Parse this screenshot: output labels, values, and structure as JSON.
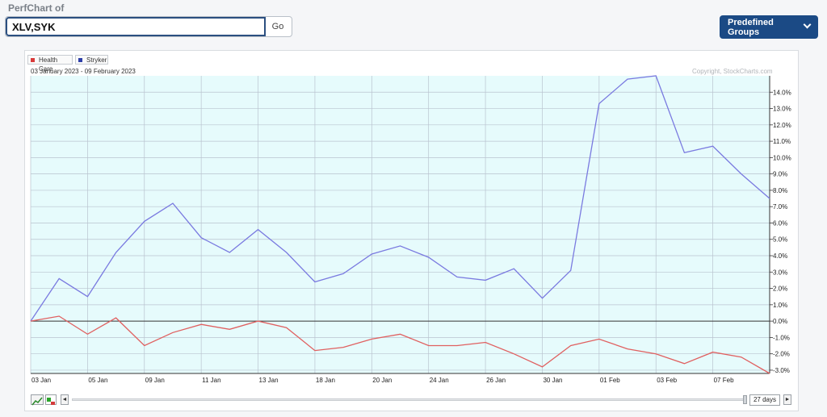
{
  "header": {
    "title": "PerfChart of"
  },
  "symbols": {
    "value": "XLV,SYK",
    "go_label": "Go"
  },
  "groups": {
    "label": "Predefined Groups"
  },
  "chart_info": {
    "date_range": "03 January 2023 - 09 February 2023",
    "copyright": "Copyright, StockCharts.com"
  },
  "controls": {
    "days_label": "27 days",
    "prev_arrow": "◄",
    "next_arrow": "►"
  },
  "colors": {
    "health_care": "#e06060",
    "stryker": "#7a7ae0",
    "health_care_swatch": "#d93a3a",
    "stryker_swatch": "#2e3fa8",
    "plot_bg": "#e6fbfc",
    "grid": "#b9c3cf",
    "zero_line": "#333333"
  },
  "chart_data": {
    "type": "line",
    "title": "",
    "xlabel": "",
    "ylabel": "",
    "ylim": [
      -3.2,
      15.0
    ],
    "yticks": [
      14,
      13,
      12,
      11,
      10,
      9,
      8,
      7,
      6,
      5,
      4,
      3,
      2,
      1,
      0,
      -1,
      -2,
      -3
    ],
    "ytick_labels": [
      "14.0%",
      "13.0%",
      "12.0%",
      "11.0%",
      "10.0%",
      "9.0%",
      "8.0%",
      "7.0%",
      "6.0%",
      "5.0%",
      "4.0%",
      "3.0%",
      "2.0%",
      "1.0%",
      "0.0%",
      "-1.0%",
      "-2.0%",
      "-3.0%"
    ],
    "x": [
      "03 Jan",
      "04 Jan",
      "05 Jan",
      "06 Jan",
      "09 Jan",
      "10 Jan",
      "11 Jan",
      "12 Jan",
      "13 Jan",
      "17 Jan",
      "18 Jan",
      "19 Jan",
      "20 Jan",
      "23 Jan",
      "24 Jan",
      "25 Jan",
      "26 Jan",
      "27 Jan",
      "30 Jan",
      "31 Jan",
      "01 Feb",
      "02 Feb",
      "03 Feb",
      "06 Feb",
      "07 Feb",
      "08 Feb",
      "09 Feb"
    ],
    "xtick_labels": [
      "03  Jan",
      "05  Jan",
      "09  Jan",
      "11  Jan",
      "13  Jan",
      "18  Jan",
      "20  Jan",
      "24  Jan",
      "26  Jan",
      "30  Jan",
      "01  Feb",
      "03  Feb",
      "07  Feb"
    ],
    "xtick_index": [
      0,
      2,
      4,
      6,
      8,
      10,
      12,
      14,
      16,
      18,
      20,
      22,
      24
    ],
    "legend_position": "top-left",
    "grid": true,
    "series": [
      {
        "name": "Stryker",
        "values": [
          0.0,
          2.6,
          1.5,
          4.2,
          6.1,
          7.2,
          5.1,
          4.2,
          5.6,
          4.2,
          2.4,
          2.9,
          4.1,
          4.6,
          3.9,
          2.7,
          2.5,
          3.2,
          1.4,
          3.1,
          13.3,
          14.8,
          15.0,
          10.3,
          10.7,
          9.0,
          7.5
        ]
      },
      {
        "name": "Health Care",
        "values": [
          0.0,
          0.3,
          -0.8,
          0.2,
          -1.5,
          -0.7,
          -0.2,
          -0.5,
          0.0,
          -0.4,
          -1.8,
          -1.6,
          -1.1,
          -0.8,
          -1.5,
          -1.5,
          -1.3,
          -2.0,
          -2.8,
          -1.5,
          -1.1,
          -1.7,
          -2.0,
          -2.6,
          -1.9,
          -2.2,
          -3.2
        ]
      }
    ]
  }
}
